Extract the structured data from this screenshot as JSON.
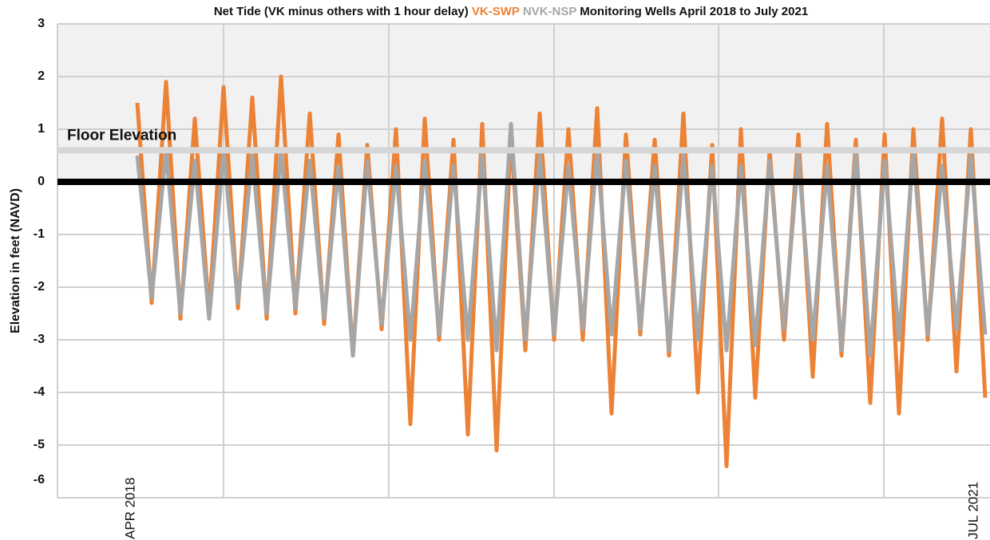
{
  "chart_data": {
    "type": "line",
    "title": [
      "Net Tide (VK minus others with 1 hour delay)",
      "Monitoring Wells April 2018 to July 2021"
    ],
    "y_label": "Elevation in feet (NAVD)",
    "annotation": {
      "label": "Floor Elevation",
      "value": 0.6
    },
    "categories": [
      "APR 2018",
      null,
      null,
      null,
      null,
      null,
      null,
      null,
      null,
      null,
      null,
      null,
      null,
      null,
      null,
      null,
      null,
      null,
      null,
      null,
      null,
      null,
      null,
      null,
      null,
      null,
      null,
      null,
      null,
      null,
      null,
      null,
      null,
      null,
      null,
      null,
      null,
      null,
      null,
      null,
      null,
      null,
      null,
      null,
      null,
      null,
      null,
      null,
      null,
      null,
      null,
      null,
      null,
      null,
      null,
      null,
      null,
      null,
      null,
      "JUL 2021"
    ],
    "series": [
      {
        "name": "VK-SWP",
        "color": "#ec8235",
        "values": [
          1.5,
          -2.3,
          1.9,
          -2.6,
          1.2,
          -2.5,
          1.8,
          -2.4,
          1.6,
          -2.6,
          2.0,
          -2.5,
          1.3,
          -2.7,
          0.9,
          -3.3,
          0.7,
          -2.8,
          1.0,
          -4.6,
          1.2,
          -3.0,
          0.8,
          -4.8,
          1.1,
          -5.1,
          0.9,
          -3.2,
          1.3,
          -3.0,
          1.0,
          -3.0,
          1.4,
          -4.4,
          0.9,
          -2.9,
          0.8,
          -3.3,
          1.3,
          -4.0,
          0.7,
          -5.4,
          1.0,
          -4.1,
          0.6,
          -3.0,
          0.9,
          -3.7,
          1.1,
          -3.3,
          0.8,
          -4.2,
          0.9,
          -4.4,
          1.0,
          -3.0,
          1.2,
          -3.6,
          1.0,
          -4.1
        ]
      },
      {
        "name": "NVK-NSP",
        "color": "#a6a6a6",
        "values": [
          0.5,
          -2.2,
          0.6,
          -2.5,
          0.4,
          -2.6,
          0.6,
          -2.3,
          0.5,
          -2.5,
          0.6,
          -2.4,
          0.4,
          -2.6,
          0.3,
          -3.3,
          0.4,
          -2.7,
          0.3,
          -3.0,
          0.4,
          -2.9,
          0.3,
          -3.0,
          0.5,
          -3.2,
          1.1,
          -3.0,
          0.5,
          -2.9,
          0.3,
          -2.8,
          0.6,
          -2.9,
          0.4,
          -2.8,
          0.3,
          -3.2,
          0.5,
          -3.0,
          0.3,
          -3.2,
          0.3,
          -3.1,
          0.4,
          -2.8,
          0.5,
          -3.0,
          0.3,
          -3.2,
          0.6,
          -3.3,
          0.4,
          -3.0,
          0.6,
          -2.9,
          0.3,
          -2.8,
          0.5,
          -2.9
        ]
      }
    ],
    "ylim": [
      -6,
      3
    ],
    "yticks": [
      -6,
      -5,
      -4,
      -3,
      -2,
      -1,
      0,
      1,
      2,
      3
    ],
    "grid": true
  }
}
